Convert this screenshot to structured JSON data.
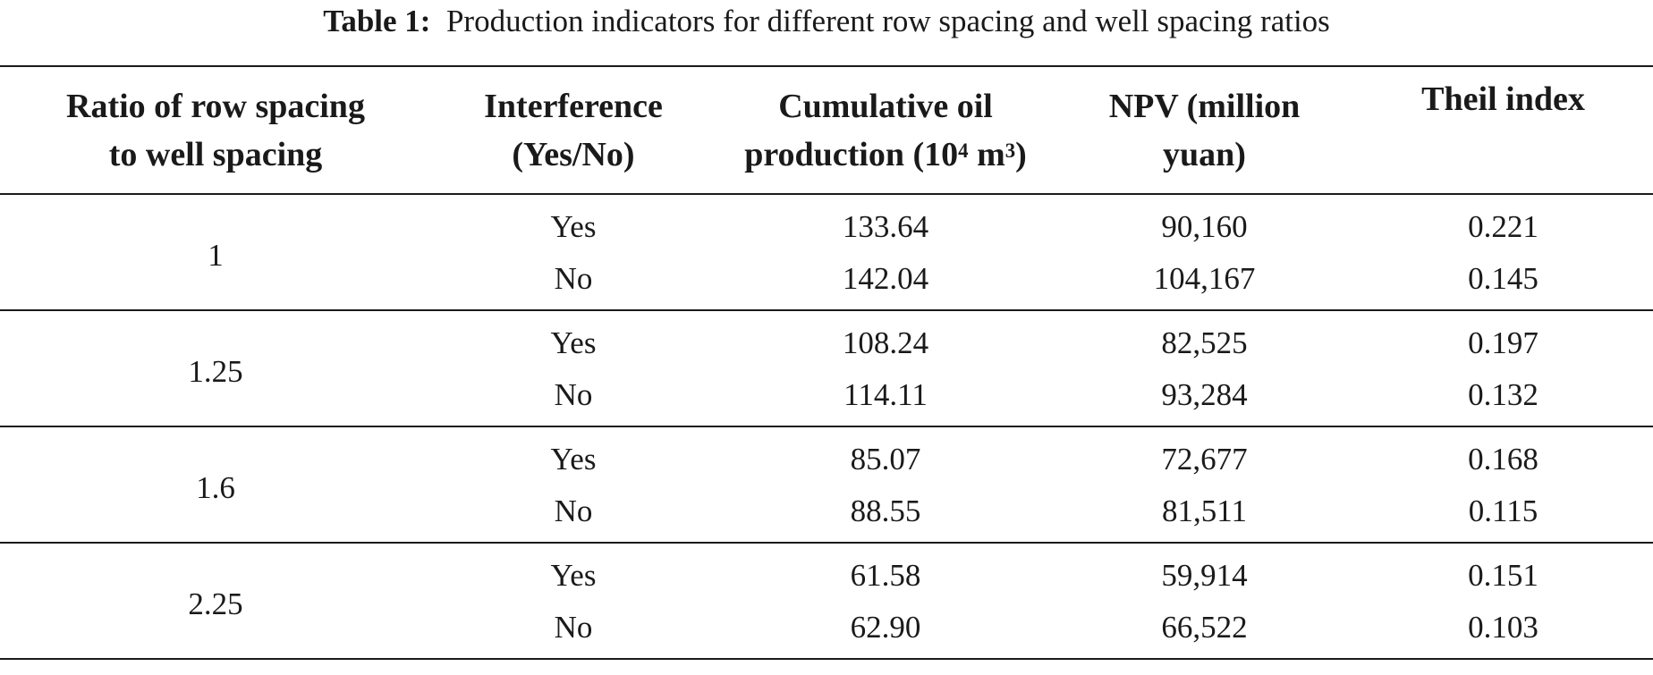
{
  "caption": {
    "label": "Table 1:",
    "text": "Production indicators for different row spacing and well spacing ratios"
  },
  "headers": {
    "ratio": [
      "Ratio of row spacing",
      "to well spacing"
    ],
    "interference": [
      "Interference",
      "(Yes/No)"
    ],
    "oil": [
      "Cumulative oil",
      "production (10",
      "4",
      " m",
      "3",
      ")"
    ],
    "npv": [
      "NPV (million",
      "yuan)"
    ],
    "theil": "Theil index"
  },
  "groups": [
    {
      "ratio": "1",
      "rows": [
        {
          "interference": "Yes",
          "oil": "133.64",
          "npv": "90,160",
          "theil": "0.221"
        },
        {
          "interference": "No",
          "oil": "142.04",
          "npv": "104,167",
          "theil": "0.145"
        }
      ]
    },
    {
      "ratio": "1.25",
      "rows": [
        {
          "interference": "Yes",
          "oil": "108.24",
          "npv": "82,525",
          "theil": "0.197"
        },
        {
          "interference": "No",
          "oil": "114.11",
          "npv": "93,284",
          "theil": "0.132"
        }
      ]
    },
    {
      "ratio": "1.6",
      "rows": [
        {
          "interference": "Yes",
          "oil": "85.07",
          "npv": "72,677",
          "theil": "0.168"
        },
        {
          "interference": "No",
          "oil": "88.55",
          "npv": "81,511",
          "theil": "0.115"
        }
      ]
    },
    {
      "ratio": "2.25",
      "rows": [
        {
          "interference": "Yes",
          "oil": "61.58",
          "npv": "59,914",
          "theil": "0.151"
        },
        {
          "interference": "No",
          "oil": "62.90",
          "npv": "66,522",
          "theil": "0.103"
        }
      ]
    }
  ]
}
